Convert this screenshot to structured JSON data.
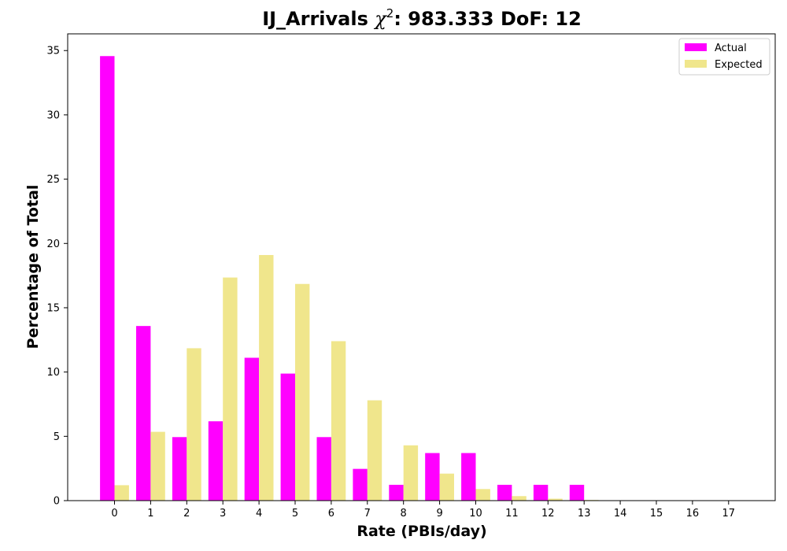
{
  "chart_data": {
    "type": "bar",
    "title_prefix": "IJ_Arrivals ",
    "title_chi": "χ",
    "title_sup": "2",
    "title_suffix": ": 983.333 DoF: 12",
    "xlabel": "Rate (PBIs/day)",
    "ylabel": "Percentage of Total",
    "categories": [
      "0",
      "1",
      "2",
      "3",
      "4",
      "5",
      "6",
      "7",
      "8",
      "9",
      "10",
      "11",
      "12",
      "13",
      "14",
      "15",
      "16",
      "17"
    ],
    "series": [
      {
        "name": "Actual",
        "color": "#ff00ff",
        "values": [
          34.57,
          13.58,
          4.94,
          6.17,
          11.11,
          9.88,
          4.94,
          2.47,
          1.23,
          3.7,
          3.7,
          1.23,
          1.23,
          1.23,
          0,
          0,
          0,
          0
        ]
      },
      {
        "name": "Expected",
        "color": "#f0e68c",
        "values": [
          1.2,
          5.35,
          11.85,
          17.35,
          19.1,
          16.85,
          12.4,
          7.8,
          4.3,
          2.1,
          0.9,
          0.35,
          0.15,
          0.05,
          0.02,
          0,
          0,
          0
        ]
      }
    ],
    "ylim": [
      0,
      36.3
    ],
    "yticks": [
      0,
      5,
      10,
      15,
      20,
      25,
      30,
      35
    ],
    "grid": false,
    "legend_position": "top-right"
  }
}
